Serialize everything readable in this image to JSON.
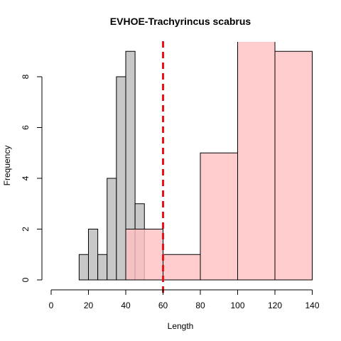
{
  "chart_data": {
    "type": "bar",
    "title": "EVHOE-Trachyrincus scabrus",
    "xlabel": "Length",
    "ylabel": "Frequency",
    "xlim": [
      0,
      140
    ],
    "ylim": [
      0,
      9
    ],
    "x_ticks": [
      0,
      20,
      40,
      60,
      80,
      100,
      120,
      140
    ],
    "y_ticks": [
      0,
      2,
      4,
      6,
      8
    ],
    "grid": false,
    "legend": "none",
    "series": [
      {
        "color": "#c8c8c8",
        "bins": [
          {
            "x0": 15,
            "x1": 20,
            "count": 1
          },
          {
            "x0": 20,
            "x1": 25,
            "count": 2
          },
          {
            "x0": 25,
            "x1": 30,
            "count": 1
          },
          {
            "x0": 30,
            "x1": 35,
            "count": 4
          },
          {
            "x0": 35,
            "x1": 40,
            "count": 8
          },
          {
            "x0": 40,
            "x1": 45,
            "count": 9
          },
          {
            "x0": 45,
            "x1": 50,
            "count": 3
          }
        ]
      },
      {
        "color": "#ffc0c0",
        "bins": [
          {
            "x0": 40,
            "x1": 60,
            "count": 2
          },
          {
            "x0": 60,
            "x1": 80,
            "count": 1
          },
          {
            "x0": 80,
            "x1": 100,
            "count": 5
          },
          {
            "x0": 100,
            "x1": 120,
            "count": 10
          },
          {
            "x0": 120,
            "x1": 140,
            "count": 9
          }
        ]
      }
    ],
    "reference_line": {
      "x": 60,
      "color": "#e8141a",
      "style": "dashed"
    }
  }
}
